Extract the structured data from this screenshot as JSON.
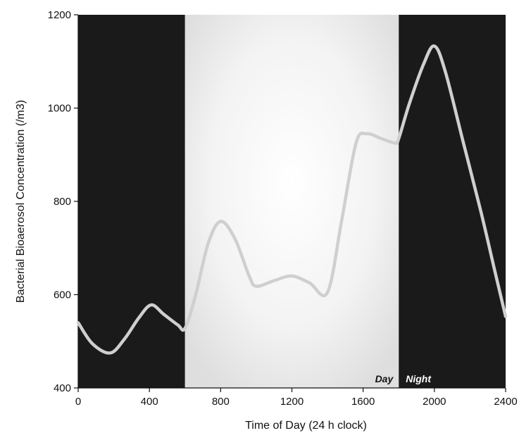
{
  "chart_data": {
    "type": "line",
    "title": "",
    "xlabel": "Time of Day (24 h clock)",
    "ylabel": "Bacterial Bioaerosol Concentration (/m3)",
    "xlim": [
      0,
      2400
    ],
    "ylim": [
      400,
      1200
    ],
    "xticks": [
      0,
      400,
      800,
      1200,
      1600,
      2000,
      2400
    ],
    "yticks": [
      400,
      600,
      800,
      1000,
      1200
    ],
    "grid": false,
    "legend": "none",
    "bands": [
      {
        "name": "night",
        "from": 0,
        "to": 600,
        "color": "#1a1a1a",
        "label": ""
      },
      {
        "name": "day",
        "from": 600,
        "to": 1800,
        "color": "#e9e9e9",
        "label": "Day"
      },
      {
        "name": "night",
        "from": 1800,
        "to": 2400,
        "color": "#1a1a1a",
        "label": "Night"
      }
    ],
    "series": [
      {
        "name": "",
        "color": "#cfcfcf",
        "x": [
          0,
          80,
          180,
          260,
          340,
          410,
          480,
          560,
          600,
          660,
          730,
          800,
          880,
          960,
          1000,
          1100,
          1200,
          1300,
          1400,
          1480,
          1560,
          1620,
          1700,
          1780,
          1800,
          1860,
          1940,
          2000,
          2060,
          2160,
          2260,
          2340,
          2400
        ],
        "y": [
          540,
          495,
          475,
          505,
          550,
          578,
          558,
          535,
          528,
          600,
          710,
          757,
          720,
          640,
          618,
          630,
          640,
          625,
          605,
          760,
          925,
          945,
          935,
          925,
          935,
          1010,
          1095,
          1133,
          1080,
          930,
          780,
          650,
          553
        ]
      }
    ]
  }
}
